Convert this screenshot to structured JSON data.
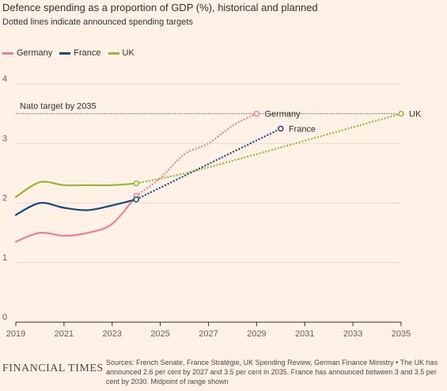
{
  "header": {
    "title": "Defence spending as a proportion of GDP (%), historical and planned",
    "subtitle": "Dotted lines indicate announced spending targets"
  },
  "legend": [
    {
      "label": "Germany",
      "color": "#e8809d"
    },
    {
      "label": "France",
      "color": "#174a80"
    },
    {
      "label": "UK",
      "color": "#96b739"
    }
  ],
  "chart_data": {
    "type": "line",
    "xlim": [
      2019,
      2035
    ],
    "ylim": [
      0,
      4
    ],
    "x_ticks": [
      "2019",
      "2021",
      "2023",
      "2025",
      "2027",
      "2029",
      "2031",
      "2033",
      "2035"
    ],
    "y_ticks": [
      "0",
      "1",
      "2",
      "3",
      "4"
    ],
    "grid": true,
    "reference_line": {
      "label": "Nato target by 2035",
      "value": 3.5
    },
    "series": [
      {
        "name": "Germany",
        "color": "#e8809d",
        "historical": [
          [
            2019,
            1.35
          ],
          [
            2020,
            1.5
          ],
          [
            2021,
            1.45
          ],
          [
            2022,
            1.5
          ],
          [
            2023,
            1.65
          ],
          [
            2024,
            2.12
          ]
        ],
        "planned": [
          [
            2024,
            2.12
          ],
          [
            2025,
            2.42
          ],
          [
            2026,
            2.82
          ],
          [
            2027,
            3.0
          ],
          [
            2028,
            3.3
          ],
          [
            2029,
            3.5
          ]
        ],
        "end_label": "Germany"
      },
      {
        "name": "France",
        "color": "#174a80",
        "historical": [
          [
            2019,
            1.8
          ],
          [
            2020,
            2.0
          ],
          [
            2021,
            1.92
          ],
          [
            2022,
            1.88
          ],
          [
            2023,
            1.96
          ],
          [
            2024,
            2.06
          ]
        ],
        "planned": [
          [
            2024,
            2.06
          ],
          [
            2030,
            3.25
          ]
        ],
        "end_label": "France"
      },
      {
        "name": "UK",
        "color": "#96b739",
        "historical": [
          [
            2019,
            2.1
          ],
          [
            2020,
            2.35
          ],
          [
            2021,
            2.3
          ],
          [
            2022,
            2.3
          ],
          [
            2023,
            2.3
          ],
          [
            2024,
            2.33
          ]
        ],
        "planned": [
          [
            2024,
            2.33
          ],
          [
            2027,
            2.6
          ],
          [
            2035,
            3.5
          ]
        ],
        "end_label": "UK"
      }
    ]
  },
  "footer": {
    "logo": "FINANCIAL TIMES",
    "source": "Sources: French Senate, France Stratégie, UK Spending Review, German Finance Ministry • The UK has announced 2.6 per cent by 2027 and 3.5 per cent in 2035. France has announced between 3 and 3.5 per cent by 2030. Midpoint of range shown"
  }
}
